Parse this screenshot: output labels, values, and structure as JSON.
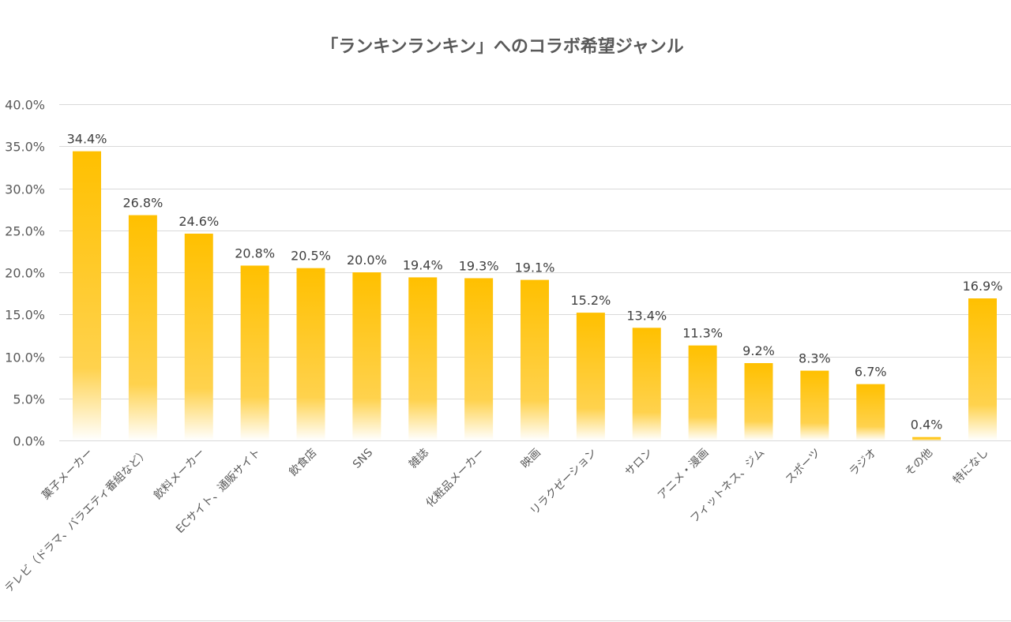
{
  "chart_data": {
    "type": "bar",
    "title": "「ランキンランキン」へのコラボ希望ジャンル",
    "xlabel": "",
    "ylabel": "",
    "ylim": [
      0,
      40
    ],
    "yticks": [
      "0.0%",
      "5.0%",
      "10.0%",
      "15.0%",
      "20.0%",
      "25.0%",
      "30.0%",
      "35.0%",
      "40.0%"
    ],
    "grid": true,
    "categories": [
      "菓子メーカー",
      "テレビ（ドラマ、バラエティ番組など）",
      "飲料メーカー",
      "ECサイト、通販サイト",
      "飲食店",
      "SNS",
      "雑誌",
      "化粧品メーカー",
      "映画",
      "リラクゼーション",
      "サロン",
      "アニメ・漫画",
      "フィットネス、ジム",
      "スポーツ",
      "ラジオ",
      "その他",
      "特になし"
    ],
    "values": [
      34.4,
      26.8,
      24.6,
      20.8,
      20.5,
      20.0,
      19.4,
      19.3,
      19.1,
      15.2,
      13.4,
      11.3,
      9.2,
      8.3,
      6.7,
      0.4,
      16.9
    ],
    "data_labels": [
      "34.4%",
      "26.8%",
      "24.6%",
      "20.8%",
      "20.5%",
      "20.0%",
      "19.4%",
      "19.3%",
      "19.1%",
      "15.2%",
      "13.4%",
      "11.3%",
      "9.2%",
      "8.3%",
      "6.7%",
      "0.4%",
      "16.9%"
    ],
    "colors": {
      "bar_top": "#FFC000",
      "bar_bottom": "#FFFFFF",
      "grid": "#D9D9D9"
    }
  }
}
